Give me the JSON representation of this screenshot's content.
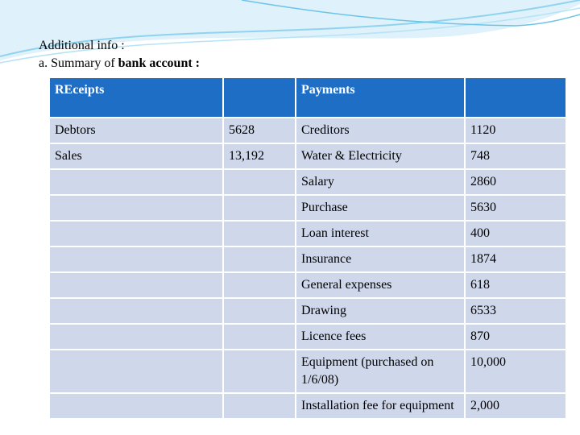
{
  "header": {
    "line1": "Additional info :",
    "line2_prefix": "a. Summary of ",
    "line2_bold": "bank account :"
  },
  "table": {
    "header": [
      "REceipts",
      null,
      "Payments",
      null
    ],
    "rows": [
      [
        "Debtors",
        "5628",
        "Creditors",
        "1120"
      ],
      [
        "Sales",
        "13,192",
        "Water & Electricity",
        "748"
      ],
      [
        null,
        null,
        "Salary",
        "2860"
      ],
      [
        null,
        null,
        "Purchase",
        "5630"
      ],
      [
        null,
        null,
        "Loan interest",
        "400"
      ],
      [
        null,
        null,
        "Insurance",
        "1874"
      ],
      [
        null,
        null,
        "General expenses",
        "618"
      ],
      [
        null,
        null,
        "Drawing",
        "6533"
      ],
      [
        null,
        null,
        "Licence fees",
        "870"
      ],
      [
        null,
        null,
        "Equipment (purchased on 1/6/08)",
        "10,000"
      ],
      [
        null,
        null,
        "Installation fee for equipment",
        "2,000"
      ]
    ]
  }
}
